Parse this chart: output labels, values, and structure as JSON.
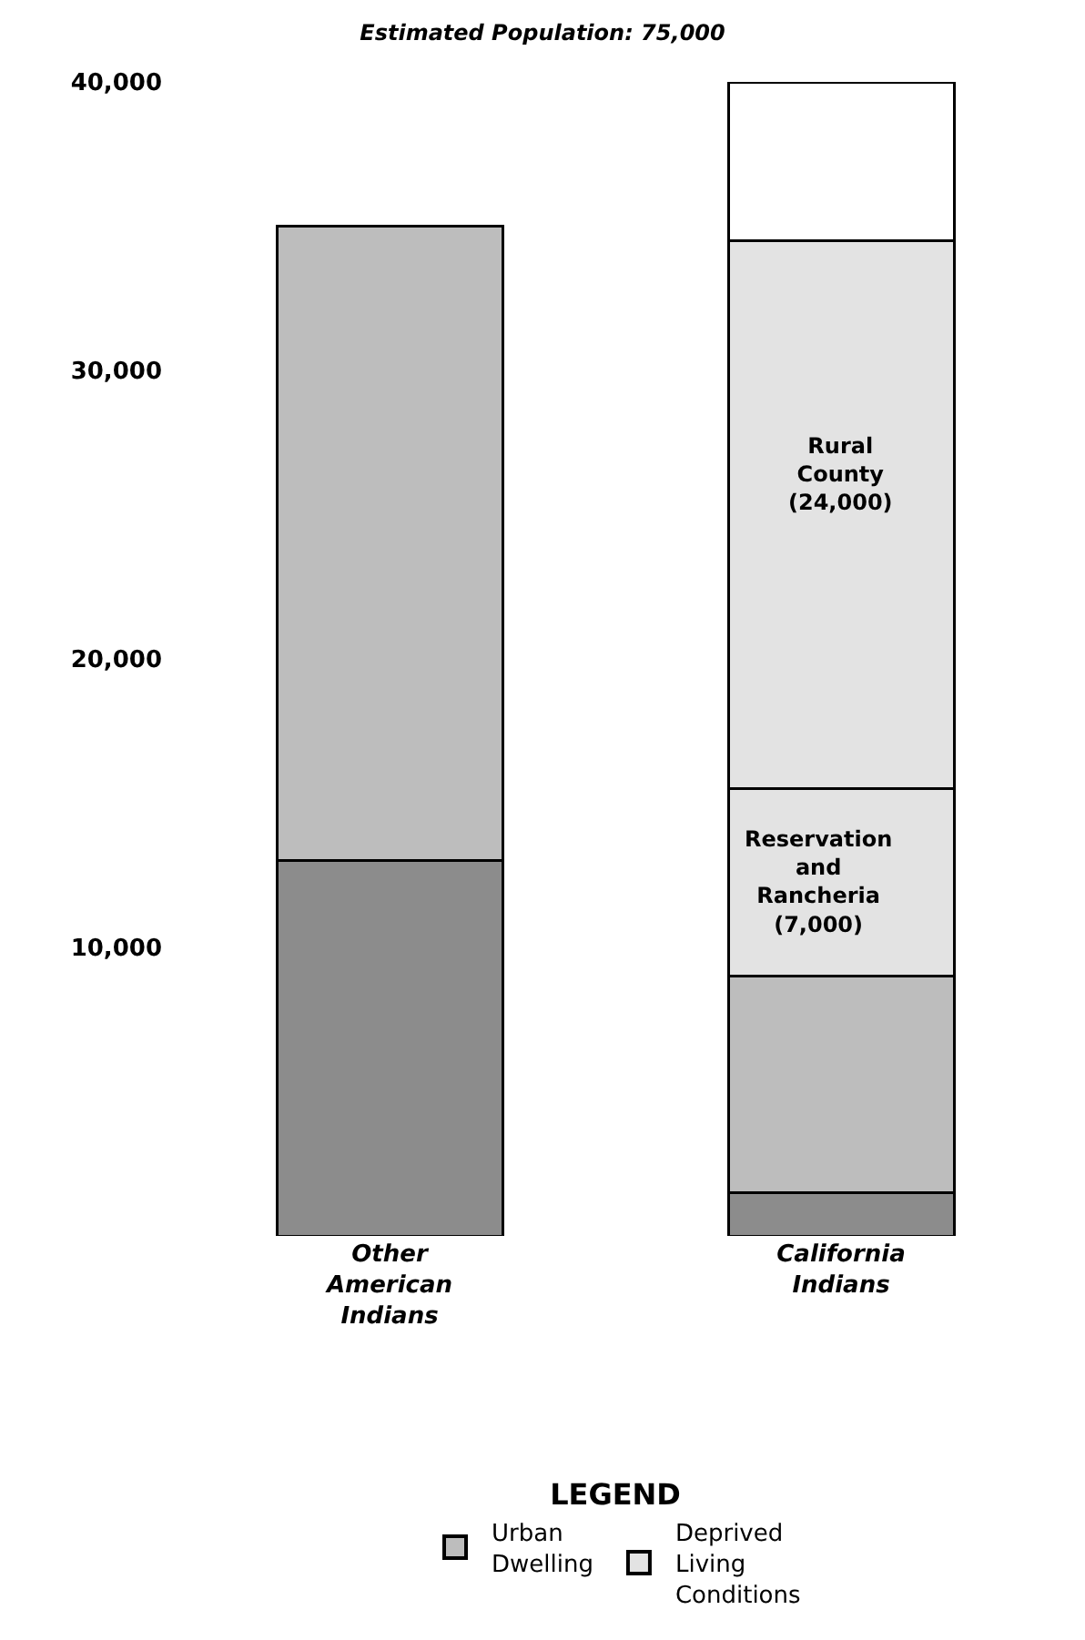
{
  "chart_data": {
    "type": "bar",
    "stacked": true,
    "title": "Estimated Population: 75,000",
    "legend_title": "LEGEND",
    "categories": [
      "Other\nAmerican\nIndians",
      "California\nIndians"
    ],
    "series": [
      {
        "color": "#8c8c8c",
        "values": [
          13000,
          1500
        ]
      },
      {
        "name": "Urban\nDwelling",
        "color": "#bdbdbd",
        "values": [
          22000,
          7500
        ]
      },
      {
        "name": "Deprived\nLiving\nConditions",
        "color": "#e3e3e3",
        "values": [
          null,
          6500
        ]
      },
      {
        "color": "#e3e3e3",
        "values": [
          null,
          19000
        ]
      },
      {
        "color": "#ffffff",
        "values": [
          null,
          5500
        ]
      }
    ],
    "annotations": [
      "Rural\nCounty\n(24,000)",
      "Reservation\nand\nRancheria\n(7,000)"
    ],
    "ylim": [
      0,
      40000
    ],
    "yticks": [
      {
        "value": 10000,
        "label": "10,000"
      },
      {
        "value": 20000,
        "label": "20,000"
      },
      {
        "value": 30000,
        "label": "30,000"
      },
      {
        "value": 40000,
        "label": "40,000"
      }
    ],
    "legend": "bottom"
  }
}
